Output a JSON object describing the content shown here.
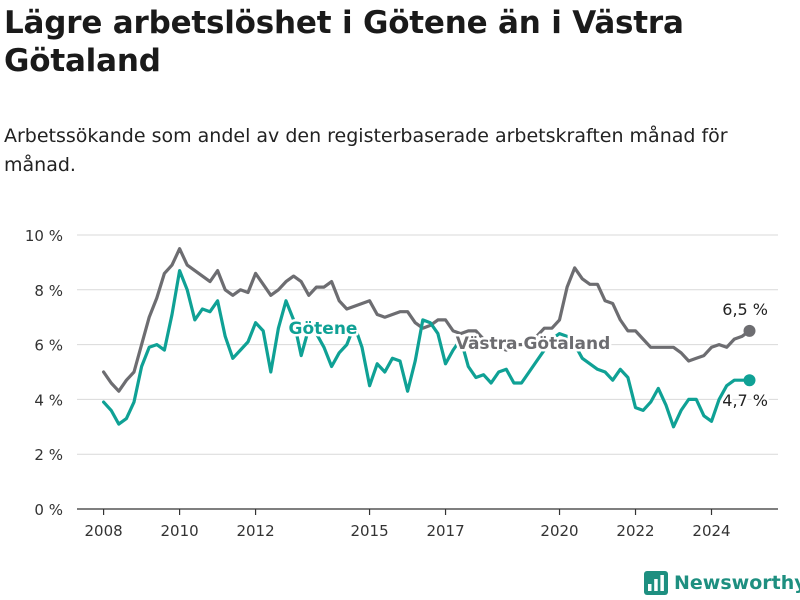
{
  "title": "Lägre arbetslöshet i Götene än i Västra Götaland",
  "subtitle": "Arbetssökande som andel av den registerbaserade arbetskraften månad för månad.",
  "brand": "Newsworthy",
  "colors": {
    "gotene": "#0fa195",
    "vg": "#6d6d71",
    "grid": "#d9d9d9",
    "axis": "#333333",
    "brand": "#1e8f80"
  },
  "chart_data": {
    "type": "line",
    "title": "Lägre arbetslöshet i Götene än i Västra Götaland",
    "xlabel": "",
    "ylabel": "",
    "ylim": [
      0,
      10
    ],
    "y_ticks": [
      0,
      2,
      4,
      6,
      8,
      10
    ],
    "y_tick_labels": [
      "0 %",
      "2 %",
      "4 %",
      "6 %",
      "8 %",
      "10 %"
    ],
    "x_ticks": [
      2008,
      2010,
      2012,
      2015,
      2017,
      2020,
      2022,
      2024
    ],
    "x_tick_labels": [
      "2008",
      "2010",
      "2012",
      "2015",
      "2017",
      "2020",
      "2022",
      "2024"
    ],
    "grid": "horizontal",
    "series": [
      {
        "name": "Västra Götaland",
        "end_label": "6,5 %",
        "x": [
          2008.0,
          2008.2,
          2008.4,
          2008.6,
          2008.8,
          2009.0,
          2009.2,
          2009.4,
          2009.6,
          2009.8,
          2010.0,
          2010.2,
          2010.4,
          2010.6,
          2010.8,
          2011.0,
          2011.2,
          2011.4,
          2011.6,
          2011.8,
          2012.0,
          2012.2,
          2012.4,
          2012.6,
          2012.8,
          2013.0,
          2013.2,
          2013.4,
          2013.6,
          2013.8,
          2014.0,
          2014.2,
          2014.4,
          2014.6,
          2014.8,
          2015.0,
          2015.2,
          2015.4,
          2015.6,
          2015.8,
          2016.0,
          2016.2,
          2016.4,
          2016.6,
          2016.8,
          2017.0,
          2017.2,
          2017.4,
          2017.6,
          2017.8,
          2018.0,
          2018.2,
          2018.4,
          2018.6,
          2018.8,
          2019.0,
          2019.2,
          2019.4,
          2019.6,
          2019.8,
          2020.0,
          2020.2,
          2020.4,
          2020.6,
          2020.8,
          2021.0,
          2021.2,
          2021.4,
          2021.6,
          2021.8,
          2022.0,
          2022.2,
          2022.4,
          2022.6,
          2022.8,
          2023.0,
          2023.2,
          2023.4,
          2023.6,
          2023.8,
          2024.0,
          2024.2,
          2024.4,
          2024.6,
          2024.8,
          2025.0
        ],
        "values": [
          5.0,
          4.6,
          4.3,
          4.7,
          5.0,
          6.0,
          7.0,
          7.7,
          8.6,
          8.9,
          9.5,
          8.9,
          8.7,
          8.5,
          8.3,
          8.7,
          8.0,
          7.8,
          8.0,
          7.9,
          8.6,
          8.2,
          7.8,
          8.0,
          8.3,
          8.5,
          8.3,
          7.8,
          8.1,
          8.1,
          8.3,
          7.6,
          7.3,
          7.4,
          7.5,
          7.6,
          7.1,
          7.0,
          7.1,
          7.2,
          7.2,
          6.8,
          6.6,
          6.7,
          6.9,
          6.9,
          6.5,
          6.4,
          6.5,
          6.5,
          6.2,
          6.0,
          5.9,
          5.8,
          6.0,
          6.0,
          6.1,
          6.3,
          6.6,
          6.6,
          6.9,
          8.1,
          8.8,
          8.4,
          8.2,
          8.2,
          7.6,
          7.5,
          6.9,
          6.5,
          6.5,
          6.2,
          5.9,
          5.9,
          5.9,
          5.9,
          5.7,
          5.4,
          5.5,
          5.6,
          5.9,
          6.0,
          5.9,
          6.2,
          6.3,
          6.5
        ]
      },
      {
        "name": "Götene",
        "end_label": "4,7 %",
        "x": [
          2008.0,
          2008.2,
          2008.4,
          2008.6,
          2008.8,
          2009.0,
          2009.2,
          2009.4,
          2009.6,
          2009.8,
          2010.0,
          2010.2,
          2010.4,
          2010.6,
          2010.8,
          2011.0,
          2011.2,
          2011.4,
          2011.6,
          2011.8,
          2012.0,
          2012.2,
          2012.4,
          2012.6,
          2012.8,
          2013.0,
          2013.2,
          2013.4,
          2013.6,
          2013.8,
          2014.0,
          2014.2,
          2014.4,
          2014.6,
          2014.8,
          2015.0,
          2015.2,
          2015.4,
          2015.6,
          2015.8,
          2016.0,
          2016.2,
          2016.4,
          2016.6,
          2016.8,
          2017.0,
          2017.2,
          2017.4,
          2017.6,
          2017.8,
          2018.0,
          2018.2,
          2018.4,
          2018.6,
          2018.8,
          2019.0,
          2019.2,
          2019.4,
          2019.6,
          2019.8,
          2020.0,
          2020.2,
          2020.4,
          2020.6,
          2020.8,
          2021.0,
          2021.2,
          2021.4,
          2021.6,
          2021.8,
          2022.0,
          2022.2,
          2022.4,
          2022.6,
          2022.8,
          2023.0,
          2023.2,
          2023.4,
          2023.6,
          2023.8,
          2024.0,
          2024.2,
          2024.4,
          2024.6,
          2024.8,
          2025.0
        ],
        "values": [
          3.9,
          3.6,
          3.1,
          3.3,
          3.9,
          5.2,
          5.9,
          6.0,
          5.8,
          7.1,
          8.7,
          8.0,
          6.9,
          7.3,
          7.2,
          7.6,
          6.3,
          5.5,
          5.8,
          6.1,
          6.8,
          6.5,
          5.0,
          6.6,
          7.6,
          6.9,
          5.6,
          6.6,
          6.4,
          5.9,
          5.2,
          5.7,
          6.0,
          6.7,
          5.9,
          4.5,
          5.3,
          5.0,
          5.5,
          5.4,
          4.3,
          5.4,
          6.9,
          6.8,
          6.4,
          5.3,
          5.8,
          6.2,
          5.2,
          4.8,
          4.9,
          4.6,
          5.0,
          5.1,
          4.6,
          4.6,
          5.0,
          5.4,
          5.8,
          6.2,
          6.4,
          6.3,
          6.0,
          5.5,
          5.3,
          5.1,
          5.0,
          4.7,
          5.1,
          4.8,
          3.7,
          3.6,
          3.9,
          4.4,
          3.8,
          3.0,
          3.6,
          4.0,
          4.0,
          3.4,
          3.2,
          4.0,
          4.5,
          4.7,
          4.7,
          4.7
        ]
      }
    ],
    "inline_labels": [
      "Götene",
      "Västra Götaland"
    ],
    "legend": "inline"
  }
}
